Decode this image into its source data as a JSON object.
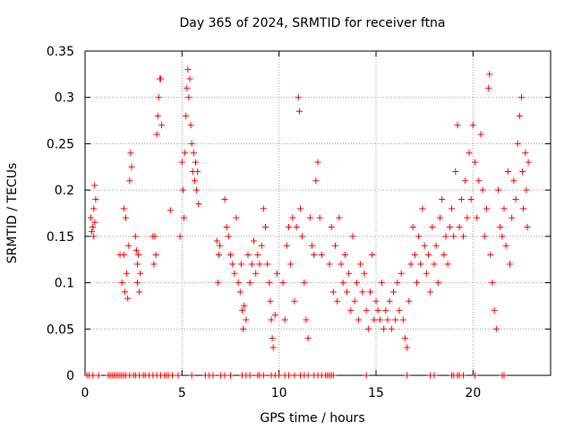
{
  "chart_data": {
    "type": "scatter",
    "title": "Day 365 of 2024, SRMTID for receiver ftna",
    "xlabel": "GPS time / hours",
    "ylabel": "SRMTID / TECUs",
    "xlim": [
      0,
      24.0
    ],
    "ylim": [
      0,
      0.35
    ],
    "grid": true,
    "marker": "+",
    "color": "#ff0000",
    "xticks": [
      0,
      5,
      10,
      15,
      20
    ],
    "xtick_labels": [
      "0",
      "5",
      "10",
      "15",
      "20"
    ],
    "yticks": [
      0,
      0.05,
      0.1,
      0.15,
      0.2,
      0.25,
      0.3,
      0.35
    ],
    "ytick_labels": [
      "0",
      "0.05",
      "0.1",
      "0.15",
      "0.2",
      "0.25",
      "0.3",
      "0.35"
    ],
    "series": [
      {
        "name": "SRMTID",
        "points": [
          [
            0.3,
            0.17
          ],
          [
            0.35,
            0.155
          ],
          [
            0.4,
            0.16
          ],
          [
            0.45,
            0.15
          ],
          [
            0.45,
            0.18
          ],
          [
            0.5,
            0.205
          ],
          [
            0.5,
            0.165
          ],
          [
            0.55,
            0.19
          ],
          [
            1.8,
            0.13
          ],
          [
            1.9,
            0.1
          ],
          [
            2.0,
            0.18
          ],
          [
            2.0,
            0.13
          ],
          [
            2.05,
            0.09
          ],
          [
            2.1,
            0.17
          ],
          [
            2.15,
            0.11
          ],
          [
            2.2,
            0.083
          ],
          [
            2.25,
            0.14
          ],
          [
            2.3,
            0.21
          ],
          [
            2.35,
            0.24
          ],
          [
            2.4,
            0.225
          ],
          [
            2.6,
            0.15
          ],
          [
            2.65,
            0.135
          ],
          [
            2.7,
            0.12
          ],
          [
            2.7,
            0.1
          ],
          [
            2.75,
            0.13
          ],
          [
            2.8,
            0.09
          ],
          [
            2.85,
            0.11
          ],
          [
            3.5,
            0.15
          ],
          [
            3.55,
            0.12
          ],
          [
            3.6,
            0.15
          ],
          [
            3.65,
            0.13
          ],
          [
            3.7,
            0.26
          ],
          [
            3.75,
            0.28
          ],
          [
            3.8,
            0.3
          ],
          [
            3.85,
            0.32
          ],
          [
            3.9,
            0.32
          ],
          [
            3.95,
            0.27
          ],
          [
            4.4,
            0.178
          ],
          [
            4.9,
            0.15
          ],
          [
            5.0,
            0.23
          ],
          [
            5.05,
            0.2
          ],
          [
            5.1,
            0.17
          ],
          [
            5.15,
            0.24
          ],
          [
            5.2,
            0.28
          ],
          [
            5.25,
            0.31
          ],
          [
            5.3,
            0.33
          ],
          [
            5.35,
            0.3
          ],
          [
            5.4,
            0.32
          ],
          [
            5.45,
            0.27
          ],
          [
            5.5,
            0.25
          ],
          [
            5.55,
            0.22
          ],
          [
            5.6,
            0.24
          ],
          [
            5.65,
            0.21
          ],
          [
            5.7,
            0.23
          ],
          [
            5.75,
            0.2
          ],
          [
            5.8,
            0.22
          ],
          [
            5.85,
            0.185
          ],
          [
            6.8,
            0.145
          ],
          [
            6.85,
            0.1
          ],
          [
            6.9,
            0.13
          ],
          [
            6.95,
            0.14
          ],
          [
            7.2,
            0.19
          ],
          [
            7.3,
            0.16
          ],
          [
            7.4,
            0.15
          ],
          [
            7.5,
            0.13
          ],
          [
            7.6,
            0.12
          ],
          [
            7.7,
            0.11
          ],
          [
            7.8,
            0.17
          ],
          [
            7.9,
            0.1
          ],
          [
            8.0,
            0.09
          ],
          [
            8.05,
            0.12
          ],
          [
            8.1,
            0.07
          ],
          [
            8.15,
            0.05
          ],
          [
            8.2,
            0.075
          ],
          [
            8.3,
            0.06
          ],
          [
            8.4,
            0.13
          ],
          [
            8.5,
            0.1
          ],
          [
            8.6,
            0.12
          ],
          [
            8.7,
            0.145
          ],
          [
            8.8,
            0.11
          ],
          [
            8.9,
            0.13
          ],
          [
            9.0,
            0.12
          ],
          [
            9.1,
            0.14
          ],
          [
            9.2,
            0.18
          ],
          [
            9.3,
            0.16
          ],
          [
            9.4,
            0.12
          ],
          [
            9.5,
            0.1
          ],
          [
            9.55,
            0.08
          ],
          [
            9.6,
            0.06
          ],
          [
            9.65,
            0.04
          ],
          [
            9.7,
            0.03
          ],
          [
            9.8,
            0.065
          ],
          [
            9.9,
            0.11
          ],
          [
            10.2,
            0.1
          ],
          [
            10.3,
            0.06
          ],
          [
            10.4,
            0.14
          ],
          [
            10.5,
            0.16
          ],
          [
            10.6,
            0.12
          ],
          [
            10.7,
            0.17
          ],
          [
            10.8,
            0.08
          ],
          [
            10.9,
            0.16
          ],
          [
            11.0,
            0.3
          ],
          [
            11.05,
            0.285
          ],
          [
            11.1,
            0.18
          ],
          [
            11.2,
            0.15
          ],
          [
            11.3,
            0.1
          ],
          [
            11.4,
            0.06
          ],
          [
            11.5,
            0.04
          ],
          [
            11.6,
            0.17
          ],
          [
            11.7,
            0.14
          ],
          [
            11.8,
            0.13
          ],
          [
            11.9,
            0.21
          ],
          [
            12.0,
            0.23
          ],
          [
            12.1,
            0.17
          ],
          [
            12.2,
            0.13
          ],
          [
            12.6,
            0.12
          ],
          [
            12.7,
            0.16
          ],
          [
            12.8,
            0.09
          ],
          [
            12.9,
            0.14
          ],
          [
            13.0,
            0.08
          ],
          [
            13.1,
            0.17
          ],
          [
            13.2,
            0.12
          ],
          [
            13.3,
            0.1
          ],
          [
            13.4,
            0.13
          ],
          [
            13.5,
            0.09
          ],
          [
            13.6,
            0.11
          ],
          [
            13.7,
            0.07
          ],
          [
            13.8,
            0.15
          ],
          [
            13.9,
            0.08
          ],
          [
            14.0,
            0.1
          ],
          [
            14.1,
            0.06
          ],
          [
            14.2,
            0.12
          ],
          [
            14.3,
            0.09
          ],
          [
            14.4,
            0.11
          ],
          [
            14.5,
            0.07
          ],
          [
            14.6,
            0.05
          ],
          [
            14.7,
            0.09
          ],
          [
            14.8,
            0.13
          ],
          [
            14.9,
            0.06
          ],
          [
            15.0,
            0.08
          ],
          [
            15.1,
            0.07
          ],
          [
            15.2,
            0.06
          ],
          [
            15.3,
            0.1
          ],
          [
            15.4,
            0.05
          ],
          [
            15.5,
            0.07
          ],
          [
            15.6,
            0.06
          ],
          [
            15.7,
            0.08
          ],
          [
            15.8,
            0.05
          ],
          [
            15.9,
            0.09
          ],
          [
            16.0,
            0.06
          ],
          [
            16.1,
            0.1
          ],
          [
            16.2,
            0.07
          ],
          [
            16.3,
            0.11
          ],
          [
            16.4,
            0.06
          ],
          [
            16.5,
            0.04
          ],
          [
            16.6,
            0.03
          ],
          [
            16.7,
            0.08
          ],
          [
            16.8,
            0.12
          ],
          [
            16.9,
            0.16
          ],
          [
            17.0,
            0.13
          ],
          [
            17.1,
            0.1
          ],
          [
            17.2,
            0.15
          ],
          [
            17.3,
            0.12
          ],
          [
            17.4,
            0.18
          ],
          [
            17.5,
            0.14
          ],
          [
            17.6,
            0.11
          ],
          [
            17.7,
            0.13
          ],
          [
            17.8,
            0.09
          ],
          [
            17.9,
            0.16
          ],
          [
            18.0,
            0.12
          ],
          [
            18.1,
            0.14
          ],
          [
            18.2,
            0.1
          ],
          [
            18.3,
            0.17
          ],
          [
            18.4,
            0.19
          ],
          [
            18.5,
            0.13
          ],
          [
            18.6,
            0.15
          ],
          [
            18.7,
            0.12
          ],
          [
            18.8,
            0.16
          ],
          [
            18.9,
            0.18
          ],
          [
            19.0,
            0.15
          ],
          [
            19.1,
            0.22
          ],
          [
            19.2,
            0.27
          ],
          [
            19.3,
            0.16
          ],
          [
            19.4,
            0.19
          ],
          [
            19.5,
            0.15
          ],
          [
            19.6,
            0.21
          ],
          [
            19.7,
            0.17
          ],
          [
            19.8,
            0.24
          ],
          [
            19.9,
            0.19
          ],
          [
            20.0,
            0.27
          ],
          [
            20.1,
            0.23
          ],
          [
            20.2,
            0.17
          ],
          [
            20.3,
            0.21
          ],
          [
            20.4,
            0.26
          ],
          [
            20.5,
            0.2
          ],
          [
            20.6,
            0.15
          ],
          [
            20.7,
            0.18
          ],
          [
            20.8,
            0.31
          ],
          [
            20.85,
            0.325
          ],
          [
            20.9,
            0.13
          ],
          [
            21.0,
            0.1
          ],
          [
            21.1,
            0.07
          ],
          [
            21.2,
            0.05
          ],
          [
            21.3,
            0.2
          ],
          [
            21.4,
            0.16
          ],
          [
            21.5,
            0.15
          ],
          [
            21.6,
            0.18
          ],
          [
            21.7,
            0.14
          ],
          [
            21.8,
            0.22
          ],
          [
            21.9,
            0.12
          ],
          [
            22.0,
            0.17
          ],
          [
            22.1,
            0.21
          ],
          [
            22.2,
            0.19
          ],
          [
            22.3,
            0.25
          ],
          [
            22.4,
            0.28
          ],
          [
            22.5,
            0.3
          ],
          [
            22.55,
            0.22
          ],
          [
            22.6,
            0.18
          ],
          [
            22.7,
            0.24
          ],
          [
            22.75,
            0.2
          ],
          [
            22.8,
            0.16
          ],
          [
            22.85,
            0.23
          ],
          [
            0.1,
            0.0
          ],
          [
            0.2,
            0.0
          ],
          [
            0.4,
            0.0
          ],
          [
            0.7,
            0.0
          ],
          [
            1.2,
            0.0
          ],
          [
            1.3,
            0.0
          ],
          [
            1.4,
            0.0
          ],
          [
            1.5,
            0.0
          ],
          [
            1.6,
            0.0
          ],
          [
            1.7,
            0.0
          ],
          [
            1.8,
            0.0
          ],
          [
            1.9,
            0.0
          ],
          [
            2.0,
            0.0
          ],
          [
            2.1,
            0.0
          ],
          [
            2.3,
            0.0
          ],
          [
            2.5,
            0.0
          ],
          [
            2.6,
            0.0
          ],
          [
            2.8,
            0.0
          ],
          [
            3.0,
            0.0
          ],
          [
            3.1,
            0.0
          ],
          [
            3.3,
            0.0
          ],
          [
            3.5,
            0.0
          ],
          [
            3.7,
            0.0
          ],
          [
            3.9,
            0.0
          ],
          [
            4.1,
            0.0
          ],
          [
            4.2,
            0.0
          ],
          [
            4.3,
            0.0
          ],
          [
            4.5,
            0.0
          ],
          [
            4.8,
            0.0
          ],
          [
            5.5,
            0.0
          ],
          [
            6.2,
            0.0
          ],
          [
            6.4,
            0.0
          ],
          [
            6.6,
            0.0
          ],
          [
            7.0,
            0.0
          ],
          [
            7.2,
            0.0
          ],
          [
            7.5,
            0.0
          ],
          [
            8.1,
            0.0
          ],
          [
            8.3,
            0.0
          ],
          [
            8.5,
            0.0
          ],
          [
            8.9,
            0.0
          ],
          [
            9.0,
            0.0
          ],
          [
            9.2,
            0.0
          ],
          [
            9.6,
            0.0
          ],
          [
            9.8,
            0.0
          ],
          [
            10.0,
            0.0
          ],
          [
            10.3,
            0.0
          ],
          [
            10.5,
            0.0
          ],
          [
            10.8,
            0.0
          ],
          [
            11.1,
            0.0
          ],
          [
            11.3,
            0.0
          ],
          [
            11.5,
            0.0
          ],
          [
            11.8,
            0.0
          ],
          [
            12.0,
            0.0
          ],
          [
            12.2,
            0.0
          ],
          [
            12.4,
            0.0
          ],
          [
            12.5,
            0.0
          ],
          [
            12.6,
            0.0
          ],
          [
            12.7,
            0.0
          ],
          [
            12.8,
            0.0
          ],
          [
            14.5,
            0.0
          ],
          [
            16.6,
            0.0
          ],
          [
            17.8,
            0.0
          ],
          [
            18.0,
            0.0
          ],
          [
            18.9,
            0.0
          ],
          [
            19.0,
            0.0
          ],
          [
            19.2,
            0.0
          ],
          [
            19.3,
            0.0
          ],
          [
            19.5,
            0.0
          ],
          [
            20.1,
            0.0
          ],
          [
            21.5,
            0.0
          ],
          [
            21.6,
            0.0
          ]
        ]
      }
    ]
  }
}
